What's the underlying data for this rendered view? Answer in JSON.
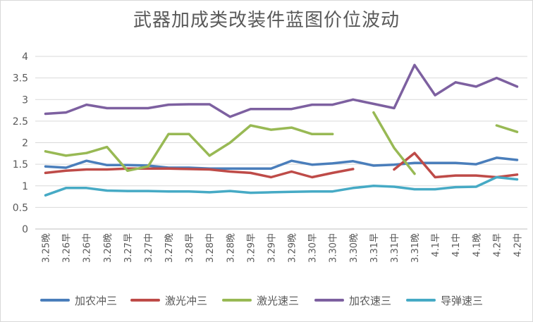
{
  "chart_data": {
    "type": "line",
    "title": "武器加成类改装件蓝图价位波动",
    "xlabel": "",
    "ylabel": "",
    "ylim": [
      0,
      4
    ],
    "yticks": [
      "0",
      "0.5",
      "1",
      "1.5",
      "2",
      "2.5",
      "3",
      "3.5",
      "4"
    ],
    "grid": true,
    "legend_position": "bottom",
    "categories": [
      "3.25晚",
      "3.26早",
      "3.26中",
      "3.26晚",
      "3.27早",
      "3.27中",
      "3.27晚",
      "3.28早",
      "3.28中",
      "3.28晚",
      "3.29早",
      "3.29中",
      "3.29晚",
      "3.30早",
      "3.30中",
      "3.30晚",
      "3.31早",
      "3.31中",
      "3.31晚",
      "4.1早",
      "4.1中",
      "4.1晚",
      "4.2早",
      "4.2中"
    ],
    "series": [
      {
        "name": "加农冲三",
        "color": "#4a7ebb",
        "values": [
          1.45,
          1.42,
          1.58,
          1.48,
          1.48,
          1.47,
          1.42,
          1.42,
          1.4,
          1.4,
          1.4,
          1.4,
          1.58,
          1.49,
          1.52,
          1.57,
          1.47,
          1.49,
          1.53,
          1.53,
          1.53,
          1.5,
          1.65,
          1.6
        ]
      },
      {
        "name": "激光冲三",
        "color": "#be4b48",
        "values": [
          1.3,
          1.35,
          1.38,
          1.38,
          1.4,
          1.4,
          1.4,
          1.39,
          1.38,
          1.33,
          1.3,
          1.2,
          1.33,
          1.2,
          1.3,
          1.39,
          null,
          1.38,
          1.76,
          1.2,
          1.24,
          1.24,
          1.2,
          1.26
        ]
      },
      {
        "name": "激光速三",
        "color": "#98b954",
        "values": [
          1.8,
          1.7,
          1.76,
          1.9,
          1.35,
          1.45,
          2.2,
          2.2,
          1.7,
          2.0,
          2.4,
          2.3,
          2.35,
          2.2,
          2.2,
          null,
          2.7,
          1.88,
          1.28,
          null,
          null,
          null,
          2.4,
          2.25
        ]
      },
      {
        "name": "加农速三",
        "color": "#7d60a0",
        "values": [
          2.67,
          2.7,
          2.88,
          2.8,
          2.8,
          2.8,
          2.88,
          2.89,
          2.89,
          2.6,
          2.78,
          2.78,
          2.78,
          2.88,
          2.88,
          3.0,
          2.9,
          2.8,
          3.8,
          3.1,
          3.4,
          3.3,
          3.5,
          3.3
        ]
      },
      {
        "name": "导弹速三",
        "color": "#46aac5",
        "values": [
          0.78,
          0.95,
          0.95,
          0.89,
          0.88,
          0.88,
          0.87,
          0.87,
          0.85,
          0.88,
          0.84,
          0.85,
          0.86,
          0.87,
          0.87,
          0.95,
          1.0,
          0.98,
          0.92,
          0.92,
          0.97,
          0.98,
          1.2,
          1.15
        ]
      }
    ]
  }
}
